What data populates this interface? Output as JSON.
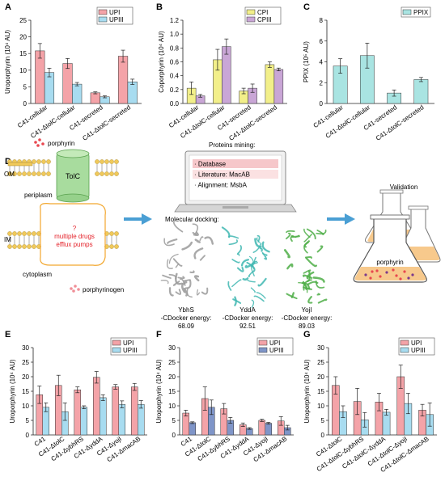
{
  "colors": {
    "upi": "#f4a3a8",
    "upiii": "#a8dcf0",
    "upiii_f": "#7f95c8",
    "cpi": "#f2ef8a",
    "cpiii": "#c9a6d6",
    "ppix": "#a9e4e2",
    "upi_dark": "#ee8e95",
    "ppix_dark": "#49b7ad",
    "arrow": "#4a9fd4"
  },
  "panel_d": {
    "label": "D",
    "porphyrin_label": "porphyrin",
    "porphyrinogen_label": "porphyrinogen",
    "om_label": "OM",
    "im_label": "IM",
    "periplasm_label": "periplasm",
    "cytoplasm_label": "cytoplasm",
    "tolc_label": "TolC",
    "pump_q": "?",
    "pump_text1": "multiple drugs",
    "pump_text2": "efflux pumps",
    "mining_title": "Proteins mining:",
    "mining_items": [
      "· Database",
      "· Literature: MacAB",
      "· Alignment: MsbA"
    ],
    "docking_title": "Molecular docking:",
    "proteins": [
      {
        "name": "YbhS",
        "energy_label": "-CDocker energy:",
        "energy": "68.09"
      },
      {
        "name": "YddA",
        "energy_label": "-CDocker energy:",
        "energy": "92.51"
      },
      {
        "name": "YojI",
        "energy_label": "-CDocker energy:",
        "energy": "89.03"
      }
    ],
    "validation_title": "Validation",
    "flask_label": "porphyrin"
  },
  "chart_data": [
    {
      "panel": "A",
      "type": "bar",
      "ylabel": "Uroporphyrin (10⁴ AU)",
      "ylim": [
        0,
        25
      ],
      "yticks": [
        0,
        5,
        10,
        15,
        20,
        25
      ],
      "categories": [
        "C41-cellular",
        "C41-ΔtolC-cellular",
        "C41-secreted",
        "C41-ΔtolC-secreted"
      ],
      "series": [
        {
          "name": "UPI",
          "values": [
            15.8,
            12.0,
            3.2,
            14.2
          ],
          "errors": [
            2.2,
            1.5,
            0.3,
            1.8
          ]
        },
        {
          "name": "UPIII",
          "values": [
            9.3,
            5.8,
            2.0,
            6.5
          ],
          "errors": [
            1.3,
            0.5,
            0.3,
            0.8
          ]
        }
      ],
      "legend": "top-right"
    },
    {
      "panel": "B",
      "type": "bar",
      "ylabel": "Coporphyrin (10⁴ AU)",
      "ylim": [
        0,
        1.2
      ],
      "yticks": [
        0.0,
        0.2,
        0.4,
        0.6,
        0.8,
        1.0,
        1.2
      ],
      "categories": [
        "C41-cellular",
        "C41-ΔtolC-cellular",
        "C41-secreted",
        "C41-ΔtolC-secreted"
      ],
      "series": [
        {
          "name": "CPI",
          "values": [
            0.22,
            0.63,
            0.18,
            0.56
          ],
          "errors": [
            0.09,
            0.15,
            0.04,
            0.04
          ]
        },
        {
          "name": "CPIII",
          "values": [
            0.11,
            0.82,
            0.22,
            0.49
          ],
          "errors": [
            0.02,
            0.11,
            0.06,
            0.02
          ]
        }
      ],
      "legend": "top-right"
    },
    {
      "panel": "C",
      "type": "bar",
      "ylabel": "PPIX (10⁵ AU)",
      "ylim": [
        0,
        8
      ],
      "yticks": [
        0,
        2,
        4,
        6,
        8
      ],
      "categories": [
        "C41-cellular",
        "C41-ΔtolC-cellular",
        "C41-secreted",
        "C41-ΔtolC-secreted"
      ],
      "series": [
        {
          "name": "PPIX",
          "values": [
            3.6,
            4.6,
            1.0,
            2.3
          ],
          "errors": [
            0.7,
            1.2,
            0.3,
            0.2
          ]
        }
      ],
      "legend": "top-right"
    },
    {
      "panel": "E",
      "type": "bar",
      "ylabel": "Uroporphyrin (10⁴ AU)",
      "ylim": [
        0,
        30
      ],
      "yticks": [
        0,
        5,
        10,
        15,
        20,
        25,
        30
      ],
      "categories": [
        "C41",
        "C41-ΔtolC",
        "C41-ΔybhRS",
        "C41-ΔyddA",
        "C41-ΔyojI",
        "C41-ΔmacAB"
      ],
      "series": [
        {
          "name": "UPI",
          "values": [
            13.8,
            17.0,
            15.5,
            19.8,
            16.5,
            16.5
          ],
          "errors": [
            3.0,
            3.5,
            1.0,
            2.0,
            0.8,
            1.2
          ]
        },
        {
          "name": "UPIII",
          "values": [
            9.5,
            8.0,
            9.5,
            12.8,
            10.5,
            10.5
          ],
          "errors": [
            1.5,
            3.0,
            0.5,
            1.0,
            1.2,
            1.3
          ]
        }
      ],
      "legend": "top-right"
    },
    {
      "panel": "F",
      "type": "bar",
      "ylabel": "Uroporphyrin (10⁴ AU)",
      "ylim": [
        0,
        30
      ],
      "yticks": [
        0,
        5,
        10,
        15,
        20,
        25,
        30
      ],
      "categories": [
        "C41",
        "C41-ΔtolC",
        "C41-ΔybhRS",
        "C41-ΔyddA",
        "C41-ΔyojI",
        "C41-ΔmacAB"
      ],
      "series": [
        {
          "name": "UPI",
          "values": [
            7.5,
            12.5,
            9.0,
            3.5,
            5.0,
            4.8
          ],
          "errors": [
            1.0,
            4.0,
            1.8,
            0.6,
            0.4,
            1.5
          ]
        },
        {
          "name": "UPIII",
          "values": [
            4.2,
            9.5,
            5.0,
            2.2,
            4.0,
            2.5
          ],
          "errors": [
            0.3,
            2.5,
            1.0,
            0.3,
            0.3,
            0.8
          ]
        }
      ],
      "legend": "top-right"
    },
    {
      "panel": "G",
      "type": "bar",
      "ylabel": "Uroporphyrin (10⁴ AU)",
      "ylim": [
        0,
        30
      ],
      "yticks": [
        0,
        5,
        10,
        15,
        20,
        25,
        30
      ],
      "categories": [
        "C41-ΔtolC",
        "C41-ΔtolC-ΔybhRS",
        "C41-ΔtolC-ΔyddA",
        "C41-ΔtolC-ΔyojI",
        "C41-ΔtolC-ΔmacAB"
      ],
      "series": [
        {
          "name": "UPI",
          "values": [
            17.0,
            11.5,
            11.3,
            20.0,
            8.5
          ],
          "errors": [
            3.0,
            4.5,
            3.0,
            4.0,
            2.0
          ]
        },
        {
          "name": "UPIII",
          "values": [
            8.0,
            5.2,
            7.8,
            10.8,
            7.0
          ],
          "errors": [
            2.0,
            2.5,
            1.0,
            3.5,
            4.0
          ]
        }
      ],
      "legend": "top-right"
    }
  ]
}
